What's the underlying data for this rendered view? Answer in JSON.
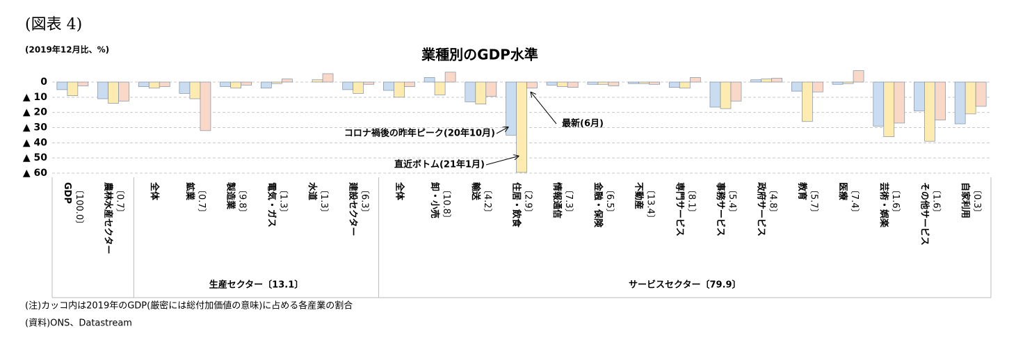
{
  "chart_data": {
    "type": "bar",
    "figure_label": "(図表 4)",
    "unit_label": "(2019年12月比、%)",
    "title": "業種別のGDP水準",
    "categories": [
      "GDP",
      "農林水産セクター",
      "全体",
      "鉱業",
      "製造業",
      "電気・ガス",
      "水道",
      "建設セクター",
      "全体",
      "卸・小売",
      "輸送",
      "住居・飲食",
      "情報通信",
      "金融・保険",
      "不動産",
      "専門サービス",
      "事務サービス",
      "政府サービス",
      "教育",
      "医療",
      "芸術・娯楽",
      "その他サービス",
      "自家利用"
    ],
    "category_weights": [
      "〔100.0〕",
      "〔0.7〕",
      null,
      "〔0.7〕",
      "〔9.8〕",
      "〔1.3〕",
      "〔1.3〕",
      "〔6.3〕",
      null,
      "〔10.8〕",
      "〔4.2〕",
      "〔2.9〕",
      "〔7.3〕",
      "〔6.5〕",
      "〔13.4〕",
      "〔8.1〕",
      "〔5.4〕",
      "〔4.8〕",
      "〔5.7〕",
      "〔7.4〕",
      "〔1.6〕",
      "〔1.6〕",
      "〔0.3〕"
    ],
    "groups": [
      {
        "label": "生産セクター〔13.1〕",
        "from": 2,
        "to": 7
      },
      {
        "label": "サービスセクター〔79.9〕",
        "from": 8,
        "to": 22
      }
    ],
    "series": [
      {
        "name": "コロナ禍後の昨年ピーク(20年10月)",
        "color": "#c9dcf0",
        "values": [
          -5,
          -11,
          -3,
          -7.5,
          -3,
          -4,
          0,
          -5,
          -5.5,
          3,
          -13,
          -35,
          -2,
          -1.5,
          -1,
          -3.5,
          -16.5,
          1.5,
          -6,
          -1.5,
          -29,
          -19,
          -27.5
        ]
      },
      {
        "name": "直近ボトム(21年1月)",
        "color": "#fdebb0",
        "values": [
          -9,
          -14,
          -4,
          -11,
          -4,
          -1,
          1.5,
          -7.5,
          -10,
          -8.5,
          -14.5,
          -59.5,
          -3,
          -1.5,
          -1,
          -4,
          -17.5,
          2,
          -26,
          -1,
          -36,
          -39,
          -21
        ]
      },
      {
        "name": "最新(6月)",
        "color": "#f9d8c8",
        "values": [
          -2.5,
          -12.5,
          -3,
          -32,
          -2,
          2,
          5.5,
          -1.5,
          -3,
          6.5,
          -9.5,
          -4,
          -3.5,
          -2.5,
          -1.5,
          3,
          -12.5,
          2.5,
          -6.5,
          7.5,
          -27,
          -25,
          -16
        ]
      }
    ],
    "ylim": [
      -62,
      5
    ],
    "yticks": [
      0,
      {
        "value": -10,
        "label": "▲ 10"
      },
      {
        "value": -20,
        "label": "▲ 20"
      },
      {
        "value": -30,
        "label": "▲ 30"
      },
      {
        "value": -40,
        "label": "▲ 40"
      },
      {
        "value": -50,
        "label": "▲ 50"
      },
      {
        "value": -60,
        "label": "▲ 60"
      }
    ],
    "grid": true,
    "notes": [
      "(注)カッコ内は2019年のGDP(厳密には総付加価値の意味)に占める各産業の割合",
      "(資料)ONS、Datastream"
    ]
  }
}
